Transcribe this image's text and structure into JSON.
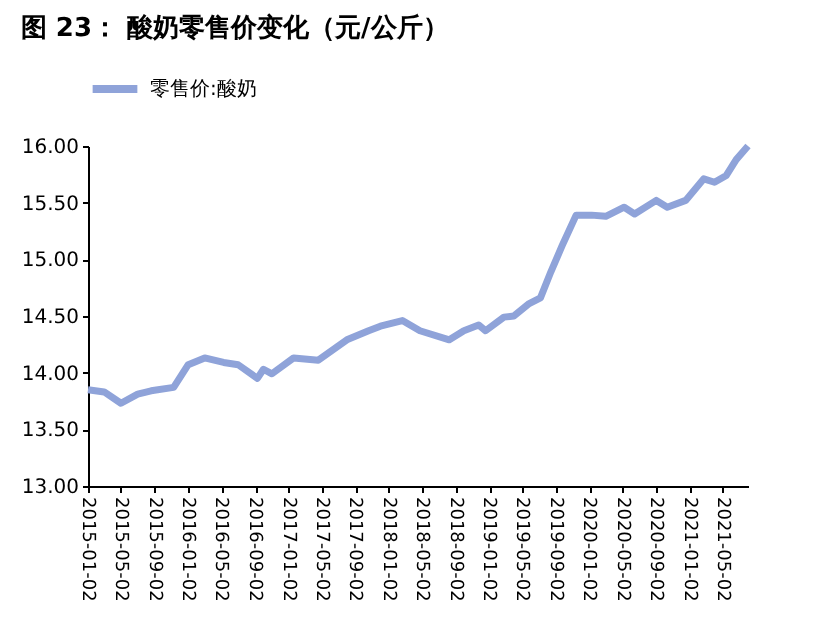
{
  "chart_data": {
    "type": "line",
    "title": "图 23：  酸奶零售价变化（元/公斤）",
    "x": [
      "2015-01-02",
      "2015-03-02",
      "2015-05-02",
      "2015-07-02",
      "2015-08-20",
      "2015-11-10",
      "2016-01-02",
      "2016-03-02",
      "2016-05-10",
      "2016-07-02",
      "2016-09-10",
      "2016-10-02",
      "2016-11-02",
      "2017-01-20",
      "2017-04-20",
      "2017-08-02",
      "2017-10-20",
      "2017-12-02",
      "2018-02-20",
      "2018-04-25",
      "2018-08-10",
      "2018-10-02",
      "2018-11-25",
      "2018-12-20",
      "2019-02-25",
      "2019-04-02",
      "2019-05-28",
      "2019-07-08",
      "2019-08-15",
      "2019-09-25",
      "2019-11-15",
      "2020-01-10",
      "2020-03-02",
      "2020-05-08",
      "2020-06-15",
      "2020-09-02",
      "2020-10-12",
      "2020-12-18",
      "2021-02-22",
      "2021-04-02",
      "2021-05-15",
      "2021-06-20",
      "2021-08-02"
    ],
    "series": [
      {
        "name": "零售价:酸奶",
        "color": "#8fa3d9",
        "values": [
          13.85,
          13.83,
          13.73,
          13.81,
          13.84,
          13.87,
          14.07,
          14.13,
          14.09,
          14.07,
          13.95,
          14.03,
          13.99,
          14.13,
          14.11,
          14.29,
          14.37,
          14.41,
          14.46,
          14.37,
          14.29,
          14.37,
          14.42,
          14.37,
          14.49,
          14.5,
          14.61,
          14.66,
          14.89,
          15.12,
          15.39,
          15.39,
          15.38,
          15.46,
          15.4,
          15.52,
          15.46,
          15.52,
          15.71,
          15.68,
          15.74,
          15.88,
          16.0
        ]
      }
    ],
    "xlim": [
      "2015-01-02",
      "2021-08-02"
    ],
    "xticks": [
      "2015-01-02",
      "2015-05-02",
      "2015-09-02",
      "2016-01-02",
      "2016-05-02",
      "2016-09-02",
      "2017-01-02",
      "2017-05-02",
      "2017-09-02",
      "2018-01-02",
      "2018-05-02",
      "2018-09-02",
      "2019-01-02",
      "2019-05-02",
      "2019-09-02",
      "2020-01-02",
      "2020-05-02",
      "2020-09-02",
      "2021-01-02",
      "2021-05-02"
    ],
    "ylim": [
      13,
      16
    ],
    "yticks": [
      {
        "value": 13,
        "label": "13.00"
      },
      {
        "value": 13.5,
        "label": "13.50"
      },
      {
        "value": 14,
        "label": "14.00"
      },
      {
        "value": 14.5,
        "label": "14.50"
      },
      {
        "value": 15,
        "label": "15.00"
      },
      {
        "value": 15.5,
        "label": "15.50"
      },
      {
        "value": 16,
        "label": "16.00"
      }
    ],
    "grid": false,
    "legend": "top",
    "marker": "none",
    "line_style": "solid"
  }
}
